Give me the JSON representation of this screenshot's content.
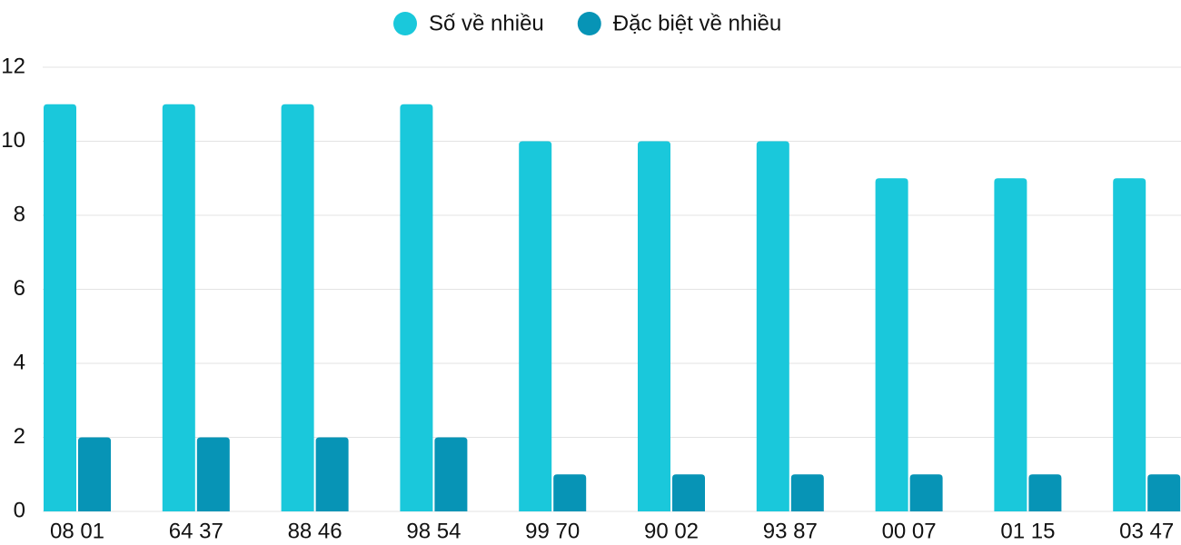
{
  "chart_data": {
    "type": "bar",
    "categories": [
      "08 01",
      "64 37",
      "88 46",
      "98 54",
      "99 70",
      "90 02",
      "93 87",
      "00 07",
      "01 15",
      "03 47"
    ],
    "series": [
      {
        "name": "Số về nhiều",
        "color": "#1ac8db",
        "values": [
          11,
          11,
          11,
          11,
          10,
          10,
          10,
          9,
          9,
          9
        ]
      },
      {
        "name": "Đặc biệt về nhiều",
        "color": "#0794b6",
        "values": [
          2,
          2,
          2,
          2,
          1,
          1,
          1,
          1,
          1,
          1
        ]
      }
    ],
    "ylim": [
      0,
      12
    ],
    "yticks": [
      0,
      2,
      4,
      6,
      8,
      10,
      12
    ],
    "grid": true,
    "legend": "top"
  }
}
